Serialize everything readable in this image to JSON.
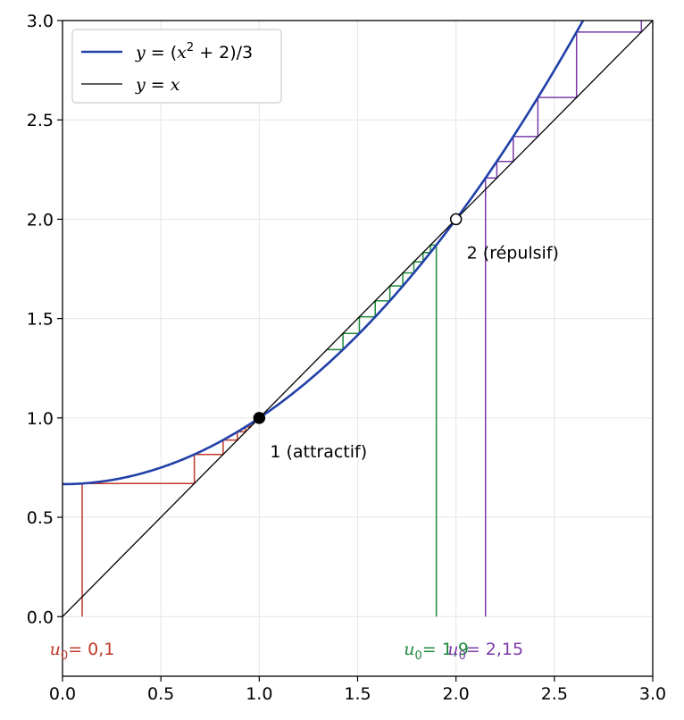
{
  "chart_data": {
    "type": "line",
    "title": "",
    "xlabel": "",
    "ylabel": "",
    "xlim": [
      0.0,
      3.0
    ],
    "ylim": [
      -0.3,
      3.0
    ],
    "grid": true,
    "legend_position": "top-left",
    "xticks": [
      "0.0",
      "0.5",
      "1.0",
      "1.5",
      "2.0",
      "2.5",
      "3.0"
    ],
    "yticks": [
      "0.0",
      "0.5",
      "1.0",
      "1.5",
      "2.0",
      "2.5",
      "3.0"
    ],
    "series": [
      {
        "name": "y = (x² + 2)/3",
        "function": "(x^2+2)/3",
        "color": "#2140a8"
      },
      {
        "name": "y = x",
        "function": "x",
        "color": "#000000"
      }
    ],
    "fixed_points": [
      {
        "x": 1.0,
        "y": 1.0,
        "label": "1 (attractif)",
        "style": "filled"
      },
      {
        "x": 2.0,
        "y": 2.0,
        "label": "2 (répulsif)",
        "style": "open"
      }
    ],
    "cobwebs": [
      {
        "u0": 0.1,
        "label_var": "u",
        "label_sub": "0",
        "label_value": "= 0,1",
        "color": "#c0392b",
        "steps": 30
      },
      {
        "u0": 1.9,
        "label_var": "u",
        "label_sub": "0",
        "label_value": "= 1,9",
        "color": "#1e8a3c",
        "steps": 9
      },
      {
        "u0": 2.15,
        "label_var": "u",
        "label_sub": "0",
        "label_value": "= 2,15",
        "color": "#7d3ca8",
        "steps": 8
      }
    ]
  },
  "legend": {
    "items": [
      {
        "lhs": "y",
        "rhs_pre": " = (",
        "var": "x",
        "sup": "2",
        "rhs_post": " + 2)/3"
      },
      {
        "lhs": "y",
        "rhs_pre": " = ",
        "var": "x",
        "sup": "",
        "rhs_post": ""
      }
    ]
  },
  "colors": {
    "curve": "#2140a8",
    "identity": "#000000",
    "grid": "#e6e6e6"
  }
}
